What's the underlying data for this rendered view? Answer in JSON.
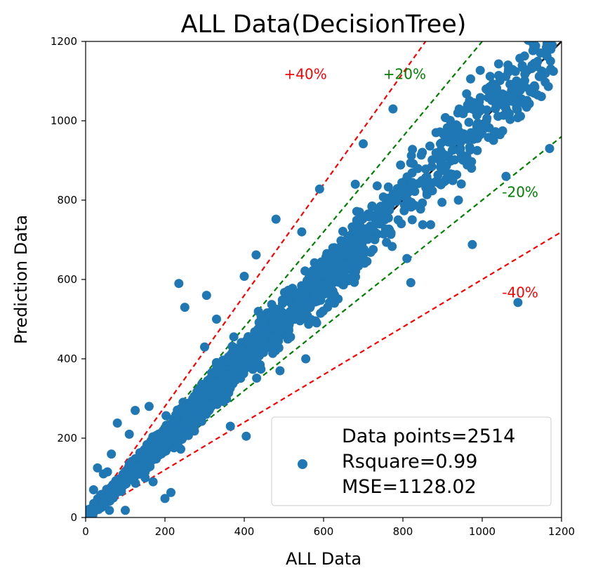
{
  "chart_data": {
    "type": "scatter",
    "title": "ALL Data(DecisionTree)",
    "xlabel": "ALL Data",
    "ylabel": "Prediction Data",
    "xlim": [
      0,
      1200
    ],
    "ylim": [
      0,
      1200
    ],
    "xticks": [
      0,
      200,
      400,
      600,
      800,
      1000,
      1200
    ],
    "yticks": [
      0,
      200,
      400,
      600,
      800,
      1000,
      1200
    ],
    "grid": false,
    "legend_position": "bottom-right",
    "legend_lines": [
      "Data points=2514",
      "Rsquare=0.99",
      "MSE=1128.02"
    ],
    "marker_color": "#1f77b4",
    "reference_lines": [
      {
        "label": "+40%",
        "slope": 1.4,
        "color": "#ff0000",
        "style": "dashed",
        "label_at": [
          500,
          1105
        ]
      },
      {
        "label": "+20%",
        "slope": 1.2,
        "color": "#008000",
        "style": "dashed",
        "label_at": [
          750,
          1105
        ]
      },
      {
        "label": "",
        "slope": 1.0,
        "color": "#000000",
        "style": "solid"
      },
      {
        "label": "-20%",
        "slope": 0.8,
        "color": "#008000",
        "style": "dashed",
        "label_at": [
          1050,
          808
        ]
      },
      {
        "label": "-40%",
        "slope": 0.6,
        "color": "#ff0000",
        "style": "dashed",
        "label_at": [
          1050,
          555
        ]
      }
    ],
    "outliers": [
      [
        235,
        590
      ],
      [
        305,
        560
      ],
      [
        590,
        828
      ],
      [
        480,
        752
      ],
      [
        700,
        942
      ],
      [
        995,
        1127
      ],
      [
        1020,
        1112
      ],
      [
        775,
        1030
      ],
      [
        1090,
        542
      ],
      [
        975,
        688
      ],
      [
        1170,
        930
      ],
      [
        1060,
        860
      ],
      [
        940,
        800
      ],
      [
        820,
        592
      ],
      [
        850,
        738
      ],
      [
        810,
        653
      ],
      [
        680,
        840
      ],
      [
        545,
        720
      ],
      [
        430,
        662
      ],
      [
        400,
        608
      ],
      [
        365,
        230
      ],
      [
        405,
        205
      ],
      [
        290,
        322
      ],
      [
        100,
        18
      ],
      [
        60,
        18
      ],
      [
        200,
        48
      ],
      [
        215,
        63
      ],
      [
        80,
        238
      ],
      [
        125,
        270
      ],
      [
        160,
        280
      ],
      [
        110,
        210
      ],
      [
        590,
        628
      ],
      [
        330,
        500
      ],
      [
        250,
        530
      ],
      [
        300,
        430
      ],
      [
        440,
        385
      ],
      [
        555,
        400
      ],
      [
        490,
        370
      ],
      [
        680,
        725
      ],
      [
        720,
        760
      ],
      [
        640,
        680
      ],
      [
        870,
        738
      ],
      [
        1120,
        1080
      ],
      [
        1010,
        1080
      ],
      [
        1160,
        1168
      ],
      [
        1140,
        1150
      ],
      [
        20,
        70
      ],
      [
        45,
        110
      ],
      [
        55,
        115
      ],
      [
        65,
        160
      ],
      [
        30,
        125
      ],
      [
        150,
        100
      ],
      [
        170,
        90
      ]
    ]
  }
}
